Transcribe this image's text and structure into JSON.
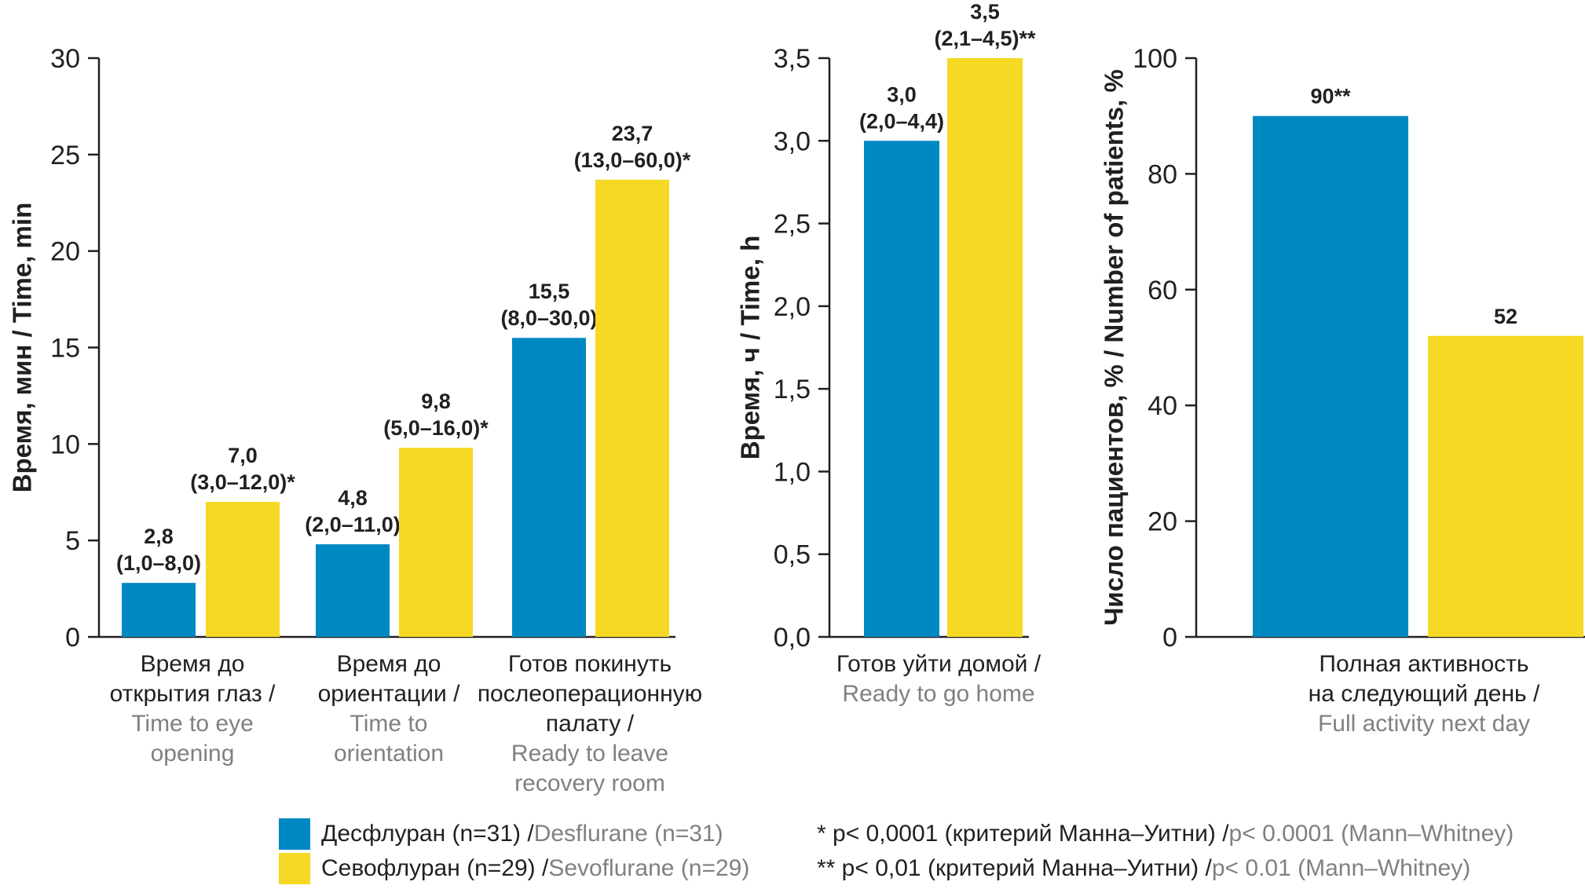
{
  "colors": {
    "desflurane": "#0088c2",
    "sevoflurane": "#f5d924"
  },
  "legend": {
    "items": [
      {
        "ru": "Десфлуран (n=31) / ",
        "en": "Desflurane (n=31)",
        "color": "#0088c2"
      },
      {
        "ru": "Севофлуран (n=29) / ",
        "en": "Sevoflurane (n=29)",
        "color": "#f5d924"
      }
    ],
    "notes": [
      {
        "ru": "* p< 0,0001 (критерий Манна–Уитни) / ",
        "en": "p< 0.0001 (Mann–Whitney)"
      },
      {
        "ru": "** p< 0,01 (критерий Манна–Уитни) / ",
        "en": "p< 0.01 (Mann–Whitney)"
      }
    ]
  },
  "chart_data": [
    {
      "type": "bar",
      "ylabel_ru": "Время, мин / ",
      "ylabel_en": "Time, min",
      "ylim": [
        0,
        30
      ],
      "ticks": [
        0,
        5,
        10,
        15,
        20,
        25,
        30
      ],
      "tick_labels": [
        "0",
        "5",
        "10",
        "15",
        "20",
        "25",
        "30"
      ],
      "categories": [
        {
          "ru": [
            "Время до",
            "открытия глаз /"
          ],
          "en": [
            "Time to eye",
            "opening"
          ]
        },
        {
          "ru": [
            "Время до",
            "ориентации /"
          ],
          "en": [
            "Time to",
            "orientation"
          ]
        },
        {
          "ru": [
            "Готов покинуть",
            "послеоперационную",
            "палату /"
          ],
          "en": [
            "Ready to leave",
            "recovery room"
          ]
        }
      ],
      "series": [
        {
          "name": "Десфлуран / Desflurane",
          "values": [
            2.8,
            4.8,
            15.5
          ],
          "labels": [
            [
              "2,8",
              "(1,0–8,0)"
            ],
            [
              "4,8",
              "(2,0–11,0)"
            ],
            [
              "15,5",
              "(8,0–30,0)"
            ]
          ]
        },
        {
          "name": "Севофлуран / Sevoflurane",
          "values": [
            7.0,
            9.8,
            23.7
          ],
          "labels": [
            [
              "7,0",
              "(3,0–12,0)*"
            ],
            [
              "9,8",
              "(5,0–16,0)*"
            ],
            [
              "23,7",
              "(13,0–60,0)*"
            ]
          ]
        }
      ]
    },
    {
      "type": "bar",
      "ylabel_ru": "Время, ч / ",
      "ylabel_en": "Time, h",
      "ylim": [
        0,
        3.5
      ],
      "ticks": [
        0,
        0.5,
        1.0,
        1.5,
        2.0,
        2.5,
        3.0,
        3.5
      ],
      "tick_labels": [
        "0,0",
        "0,5",
        "1,0",
        "1,5",
        "2,0",
        "2,5",
        "3,0",
        "3,5"
      ],
      "categories": [
        {
          "ru": [
            "Готов уйти домой /"
          ],
          "en": [
            "Ready to go home"
          ]
        }
      ],
      "series": [
        {
          "name": "Десфлуран / Desflurane",
          "values": [
            3.0
          ],
          "labels": [
            [
              "3,0",
              "(2,0–4,4)"
            ]
          ]
        },
        {
          "name": "Севофлуран / Sevoflurane",
          "values": [
            3.5
          ],
          "labels": [
            [
              "3,5",
              "(2,1–4,5)**"
            ]
          ]
        }
      ]
    },
    {
      "type": "bar",
      "ylabel_ru": "Число пациентов, % / ",
      "ylabel_en": "Number of patients, %",
      "ylim": [
        0,
        100
      ],
      "ticks": [
        0,
        20,
        40,
        60,
        80,
        100
      ],
      "tick_labels": [
        "0",
        "20",
        "40",
        "60",
        "80",
        "100"
      ],
      "categories": [
        {
          "ru": [
            "Полная активность",
            "на следующий день /"
          ],
          "en": [
            "Full activity next day"
          ]
        }
      ],
      "series": [
        {
          "name": "Десфлуран / Desflurane",
          "values": [
            90
          ],
          "labels": [
            [
              "90**"
            ]
          ]
        },
        {
          "name": "Севофлуран / Sevoflurane",
          "values": [
            52
          ],
          "labels": [
            [
              "52"
            ]
          ]
        }
      ]
    }
  ]
}
